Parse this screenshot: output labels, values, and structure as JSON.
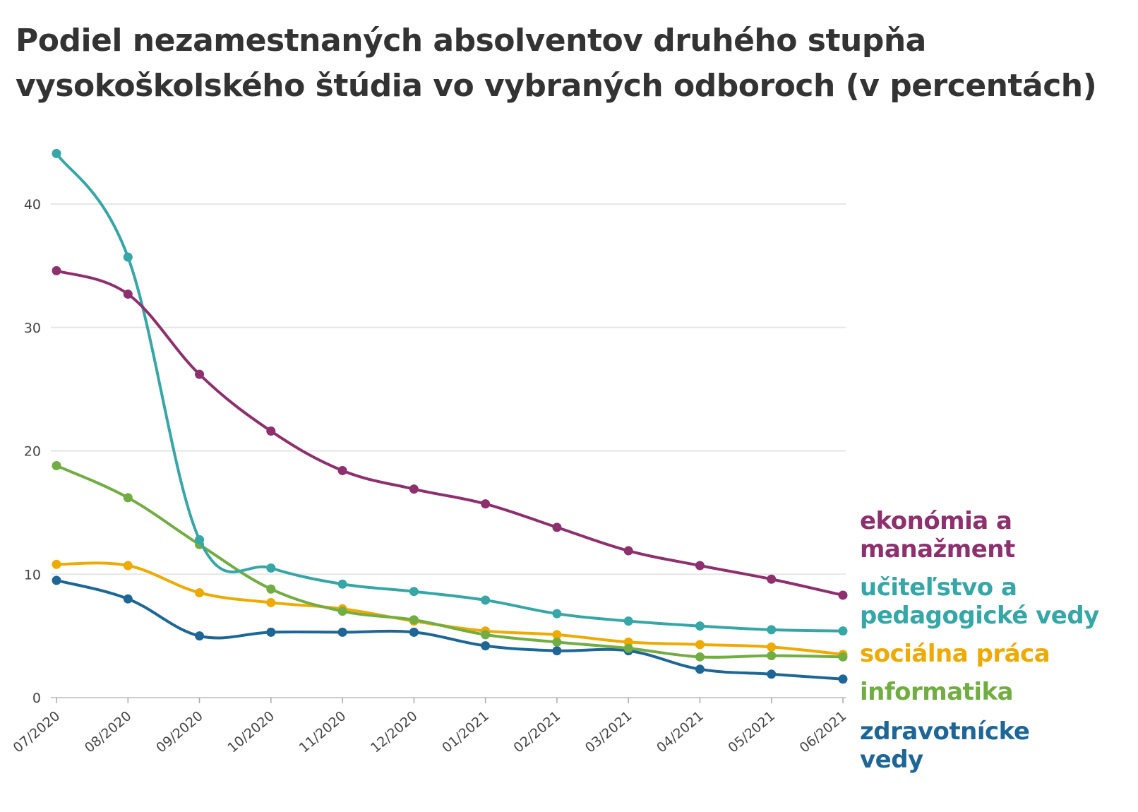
{
  "chart_data": {
    "type": "line",
    "title": "Podiel nezamestnaných absolventov druhého stupňa vysokoškolského štúdia vo vybraných odboroch (v percentách)",
    "xlabel": "",
    "ylabel": "",
    "ylim": [
      0,
      45
    ],
    "yticks": [
      "0",
      "10",
      "20",
      "30",
      "40"
    ],
    "grid": true,
    "legend": "right (direct labels)",
    "categories": [
      "07/2020",
      "08/2020",
      "09/2020",
      "10/2020",
      "11/2020",
      "12/2020",
      "01/2021",
      "02/2021",
      "03/2021",
      "04/2021",
      "05/2021",
      "06/2021"
    ],
    "series": [
      {
        "name": "ekonómia a manažment",
        "label_lines": [
          "ekonómia a",
          "manažment"
        ],
        "color": "#8e2f6e",
        "values": [
          34.6,
          32.7,
          26.2,
          21.6,
          18.4,
          16.9,
          15.7,
          13.8,
          11.9,
          10.7,
          9.6,
          8.3
        ]
      },
      {
        "name": "učiteľstvo a pedagogické vedy",
        "label_lines": [
          "učiteľstvo a",
          "pedagogické vedy"
        ],
        "color": "#36a6a6",
        "values": [
          44.1,
          35.7,
          12.8,
          10.5,
          9.2,
          8.6,
          7.9,
          6.8,
          6.2,
          5.8,
          5.5,
          5.4
        ]
      },
      {
        "name": "sociálna práca",
        "label_lines": [
          "sociálna práca"
        ],
        "color": "#eeaa00",
        "values": [
          10.8,
          10.7,
          8.5,
          7.7,
          7.2,
          6.2,
          5.4,
          5.1,
          4.5,
          4.3,
          4.1,
          3.5
        ]
      },
      {
        "name": "informatika",
        "label_lines": [
          "informatika"
        ],
        "color": "#72ad43",
        "values": [
          18.8,
          16.2,
          12.4,
          8.8,
          7.0,
          6.3,
          5.1,
          4.5,
          4.0,
          3.3,
          3.4,
          3.3
        ]
      },
      {
        "name": "zdravotnícke vedy",
        "label_lines": [
          "zdravotnícke",
          "vedy"
        ],
        "color": "#1d6696",
        "values": [
          9.5,
          8.0,
          5.0,
          5.3,
          5.3,
          5.3,
          4.2,
          3.8,
          3.8,
          2.3,
          1.9,
          1.5
        ]
      }
    ]
  }
}
